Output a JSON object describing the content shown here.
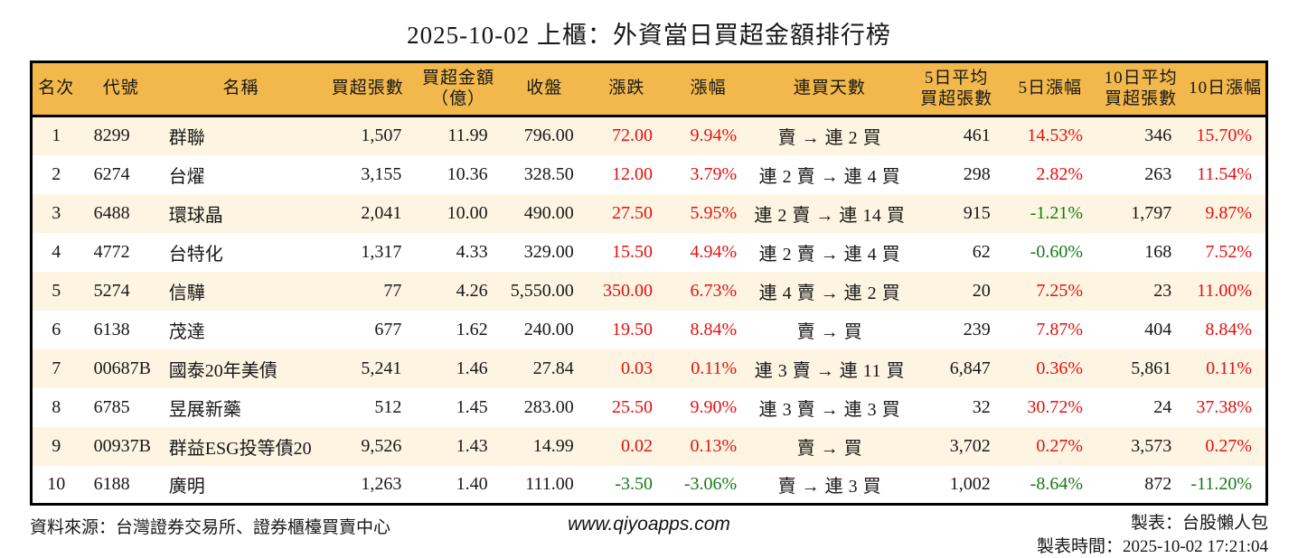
{
  "title": "2025-10-02 上櫃：外資當日買超金額排行榜",
  "chart_data": {
    "type": "table",
    "title": "2025-10-02 上櫃：外資當日買超金額排行榜",
    "columns": [
      "名次",
      "代號",
      "名稱",
      "買超張數",
      "買超金額\n（億）",
      "收盤",
      "漲跌",
      "漲幅",
      "連買天數",
      "5日平均\n買超張數",
      "5日漲幅",
      "10日平均\n買超張數",
      "10日漲幅"
    ],
    "trend_columns": [
      6,
      7,
      10,
      12
    ],
    "rows": [
      [
        "1",
        "8299",
        "群聯",
        "1,507",
        "11.99",
        "796.00",
        "72.00",
        "9.94%",
        "賣 → 連 2 買",
        "461",
        "14.53%",
        "346",
        "15.70%"
      ],
      [
        "2",
        "6274",
        "台燿",
        "3,155",
        "10.36",
        "328.50",
        "12.00",
        "3.79%",
        "連 2 賣 → 連 4 買",
        "298",
        "2.82%",
        "263",
        "11.54%"
      ],
      [
        "3",
        "6488",
        "環球晶",
        "2,041",
        "10.00",
        "490.00",
        "27.50",
        "5.95%",
        "連 2 賣 → 連 14 買",
        "915",
        "-1.21%",
        "1,797",
        "9.87%"
      ],
      [
        "4",
        "4772",
        "台特化",
        "1,317",
        "4.33",
        "329.00",
        "15.50",
        "4.94%",
        "連 2 賣 → 連 4 買",
        "62",
        "-0.60%",
        "168",
        "7.52%"
      ],
      [
        "5",
        "5274",
        "信驊",
        "77",
        "4.26",
        "5,550.00",
        "350.00",
        "6.73%",
        "連 4 賣 → 連 2 買",
        "20",
        "7.25%",
        "23",
        "11.00%"
      ],
      [
        "6",
        "6138",
        "茂達",
        "677",
        "1.62",
        "240.00",
        "19.50",
        "8.84%",
        "賣 → 買",
        "239",
        "7.87%",
        "404",
        "8.84%"
      ],
      [
        "7",
        "00687B",
        "國泰20年美債",
        "5,241",
        "1.46",
        "27.84",
        "0.03",
        "0.11%",
        "連 3 賣 → 連 11 買",
        "6,847",
        "0.36%",
        "5,861",
        "0.11%"
      ],
      [
        "8",
        "6785",
        "昱展新藥",
        "512",
        "1.45",
        "283.00",
        "25.50",
        "9.90%",
        "連 3 賣 → 連 3 買",
        "32",
        "30.72%",
        "24",
        "37.38%"
      ],
      [
        "9",
        "00937B",
        "群益ESG投等債20",
        "9,526",
        "1.43",
        "14.99",
        "0.02",
        "0.13%",
        "賣 → 買",
        "3,702",
        "0.27%",
        "3,573",
        "0.27%"
      ],
      [
        "10",
        "6188",
        "廣明",
        "1,263",
        "1.40",
        "111.00",
        "-3.50",
        "-3.06%",
        "賣 → 連 3 買",
        "1,002",
        "-8.64%",
        "872",
        "-11.20%"
      ]
    ]
  },
  "footer": {
    "source": "資料來源：台灣證券交易所、證券櫃檯買賣中心",
    "website": "www.qiyoapps.com",
    "maker": "製表：台股懶人包",
    "time": "製表時間：2025-10-02 17:21:04"
  },
  "colors": {
    "up": "#e41010",
    "down": "#157a15",
    "header_bg": "#f2b84c",
    "stripe_bg": "#fdf5e2"
  }
}
